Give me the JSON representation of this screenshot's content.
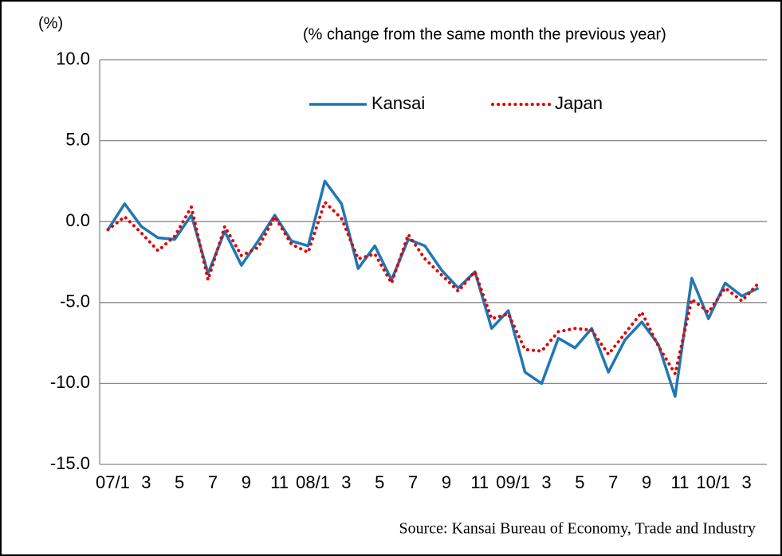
{
  "chart_data": {
    "type": "line",
    "y_unit": "(%)",
    "subtitle": "(% change from the same month the previous year)",
    "source": "Source: Kansai Bureau of Economy, Trade and Industry",
    "categories": [
      "07/1",
      null,
      "3",
      null,
      "5",
      null,
      "7",
      null,
      "9",
      null,
      "11",
      null,
      "08/1",
      null,
      "3",
      null,
      "5",
      null,
      "7",
      null,
      "9",
      null,
      "11",
      null,
      "09/1",
      null,
      "3",
      null,
      "5",
      null,
      "7",
      null,
      "9",
      null,
      "11",
      null,
      "10/1",
      null,
      "3",
      null
    ],
    "series": [
      {
        "name": "Kansai",
        "color": "#1f77b4",
        "style": "solid",
        "values": [
          -0.5,
          1.1,
          -0.3,
          -1.0,
          -1.1,
          0.4,
          -3.2,
          -0.6,
          -2.7,
          -1.2,
          0.4,
          -1.2,
          -1.5,
          2.5,
          1.1,
          -2.9,
          -1.5,
          -3.6,
          -1.1,
          -1.5,
          -3.0,
          -4.1,
          -3.1,
          -6.6,
          -5.5,
          -9.3,
          -10.0,
          -7.2,
          -7.8,
          -6.6,
          -9.3,
          -7.3,
          -6.2,
          -7.6,
          -10.8,
          -3.5,
          -6.0,
          -3.8,
          -4.6,
          -4.1
        ]
      },
      {
        "name": "Japan",
        "color": "#e00000",
        "style": "dotted",
        "values": [
          -0.5,
          0.3,
          -0.7,
          -1.8,
          -0.9,
          0.9,
          -3.6,
          -0.3,
          -2.1,
          -1.6,
          0.3,
          -1.4,
          -1.9,
          1.2,
          0.2,
          -2.3,
          -2.0,
          -3.8,
          -0.8,
          -2.3,
          -3.3,
          -4.3,
          -3.1,
          -6.0,
          -5.7,
          -7.9,
          -8.0,
          -6.8,
          -6.6,
          -6.7,
          -8.2,
          -6.9,
          -5.6,
          -7.7,
          -9.4,
          -4.8,
          -5.6,
          -4.1,
          -4.9,
          -3.8
        ]
      }
    ],
    "ylim": [
      -15,
      10
    ],
    "yticks": [
      {
        "value": -15,
        "label": "-15.0"
      },
      {
        "value": -10,
        "label": "-10.0"
      },
      {
        "value": -5,
        "label": "-5.0"
      },
      {
        "value": 0,
        "label": "0.0"
      },
      {
        "value": 5,
        "label": "5.0"
      },
      {
        "value": 10,
        "label": "10.0"
      }
    ],
    "grid": true
  }
}
